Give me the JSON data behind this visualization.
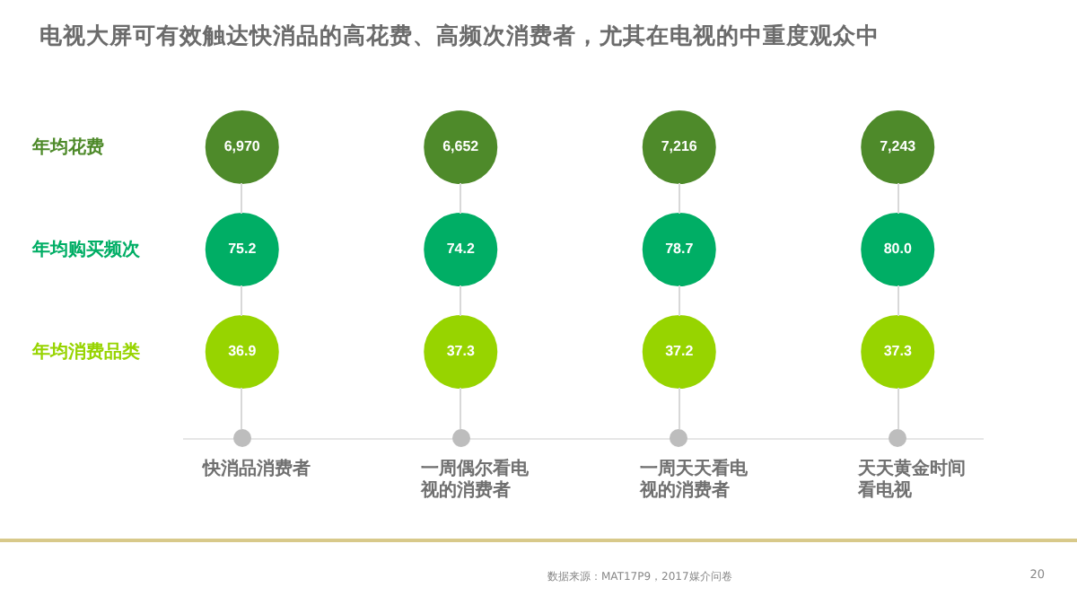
{
  "chart_data": {
    "type": "other",
    "title": "电视大屏可有效触达快消品的高花费、高频次消费者，尤其在电视的中重度观众中",
    "categories": [
      "快消品消费者",
      "一周偶尔看电视的消费者",
      "一周天天看电视的消费者",
      "天天黄金时间看电视"
    ],
    "series": [
      {
        "name": "年均花费",
        "color": "#4e8a2a",
        "values": [
          6970,
          6652,
          7216,
          7243
        ],
        "value_labels": [
          "6,970",
          "6,652",
          "7,216",
          "7,243"
        ]
      },
      {
        "name": "年均购买频次",
        "color": "#00ae65",
        "values": [
          75.2,
          74.2,
          78.7,
          80.0
        ],
        "value_labels": [
          "75.2",
          "74.2",
          "78.7",
          "80.0"
        ]
      },
      {
        "name": "年均消费品类",
        "color": "#97d400",
        "values": [
          36.9,
          37.3,
          37.2,
          37.3
        ],
        "value_labels": [
          "36.9",
          "37.3",
          "37.2",
          "37.3"
        ]
      }
    ],
    "annotations": [
      "数据来源：MAT17P9，2017媒介问卷",
      "20"
    ]
  }
}
